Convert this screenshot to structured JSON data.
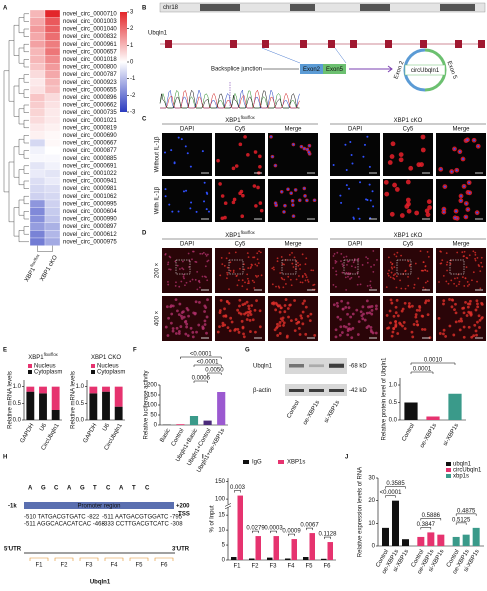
{
  "panel_labels": [
    "A",
    "B",
    "C",
    "D",
    "E",
    "F",
    "G",
    "H",
    "I",
    "J"
  ],
  "chart_data": [
    {
      "type": "heatmap",
      "rows": [
        "novel_circ_0000710",
        "novel_circ_0001003",
        "novel_circ_0001040",
        "novel_circ_0000832",
        "novel_circ_0000961",
        "novel_circ_0000657",
        "novel_circ_0001018",
        "novel_circ_0000800",
        "novel_circ_0000787",
        "novel_circ_0000923",
        "novel_circ_0000655",
        "novel_circ_0000896",
        "novel_circ_0000662",
        "novel_circ_0000735",
        "novel_circ_0001021",
        "novel_circ_0000819",
        "novel_circ_0000690",
        "novel_circ_0000667",
        "novel_circ_0000877",
        "novel_circ_0000885",
        "novel_circ_0000691",
        "novel_circ_0001022",
        "novel_circ_0000941",
        "novel_circ_0000981",
        "novel_circ_0001062",
        "novel_circ_0000995",
        "novel_circ_0000604",
        "novel_circ_0000990",
        "novel_circ_0000897",
        "novel_circ_0000612",
        "novel_circ_0000975"
      ],
      "columns": [
        {
          "label": "XBP1",
          "sup": "flox/flox"
        },
        {
          "label": "XBP1 cKO"
        }
      ],
      "values": [
        [
          1.0,
          3.0
        ],
        [
          1.2,
          2.3
        ],
        [
          1.4,
          2.2
        ],
        [
          1.2,
          2.0
        ],
        [
          1.3,
          1.8
        ],
        [
          1.0,
          1.9
        ],
        [
          1.0,
          1.6
        ],
        [
          0.8,
          1.4
        ],
        [
          0.5,
          1.2
        ],
        [
          0.3,
          1.0
        ],
        [
          0.4,
          0.9
        ],
        [
          0.8,
          0.5
        ],
        [
          0.7,
          0.4
        ],
        [
          0.6,
          0.3
        ],
        [
          0.5,
          0.3
        ],
        [
          0.3,
          0.2
        ],
        [
          0.2,
          0.1
        ],
        [
          -0.6,
          0.1
        ],
        [
          -0.2,
          0.0
        ],
        [
          -0.1,
          -0.1
        ],
        [
          -0.4,
          -0.2
        ],
        [
          -0.3,
          -0.4
        ],
        [
          -0.5,
          -0.3
        ],
        [
          -0.6,
          -0.5
        ],
        [
          -0.7,
          -0.6
        ],
        [
          -1.6,
          -0.7
        ],
        [
          -1.8,
          -0.8
        ],
        [
          -1.7,
          -0.9
        ],
        [
          -1.5,
          -1.2
        ],
        [
          -1.9,
          -1.1
        ],
        [
          -2.0,
          -1.3
        ]
      ],
      "zlim": [
        -3,
        3
      ],
      "colorbar_ticks": [
        3,
        2,
        1,
        0,
        -1,
        -2,
        -3
      ],
      "colors": [
        "#2b3bbf",
        "#ffffff",
        "#e3262a"
      ]
    },
    {
      "type": "stacked_bar",
      "title": {
        "label": "XBP1",
        "sup": "flox/flox"
      },
      "ylabel": "Relative mRNA levels",
      "categories": [
        "GAPDH",
        "U6",
        "CircUbqln1"
      ],
      "series": [
        {
          "name": "Nucleus",
          "color": "#e6336f",
          "values": [
            0.15,
            0.2,
            0.7
          ]
        },
        {
          "name": "Cytoplasm",
          "color": "#111111",
          "values": [
            0.85,
            0.8,
            0.3
          ]
        }
      ],
      "ylim": [
        0,
        1.2
      ],
      "yticks": [
        {
          "value": 0,
          "label": "0.0"
        },
        {
          "value": 0.5,
          "label": "0.5"
        },
        {
          "value": 1,
          "label": "1.0"
        }
      ]
    },
    {
      "type": "stacked_bar",
      "title": {
        "label": "XBP1 CKO"
      },
      "ylabel": "Relative mRNA levels",
      "categories": [
        "GAPDH",
        "U6",
        "CircUbqln1"
      ],
      "series": [
        {
          "name": "Nucleus",
          "color": "#e6336f",
          "values": [
            0.2,
            0.15,
            0.6
          ]
        },
        {
          "name": "Cytoplasm",
          "color": "#111111",
          "values": [
            0.8,
            0.85,
            0.4
          ]
        }
      ],
      "ylim": [
        0,
        1.2
      ],
      "yticks": [
        {
          "value": 0,
          "label": "0.0"
        },
        {
          "value": 0.5,
          "label": "0.5"
        },
        {
          "value": 1,
          "label": "1.0"
        }
      ]
    },
    {
      "type": "bar",
      "ylabel": "Relative luciferase activity",
      "categories": [
        "Basic",
        "Control",
        "Ubqln1+Basic",
        "Ubqln1+Control",
        "Ubqln1+oe-XBP1s"
      ],
      "values": [
        2,
        4,
        45,
        22,
        165
      ],
      "colors": [
        "#222222",
        "#e6336f",
        "#3a9a8a",
        "#4b2a7b",
        "#9b59d0"
      ],
      "ylim": [
        0,
        200
      ],
      "yticks": [
        0,
        50,
        100,
        150,
        200
      ],
      "annotations": [
        "0.0006",
        "0.0050",
        "<0.0001",
        "<0.0001"
      ]
    },
    {
      "type": "bar",
      "ylabel": "Relative protein level of Ubqln1",
      "categories": [
        "Control",
        "oe-XBP1s",
        "si-XBP1s"
      ],
      "values": [
        0.5,
        0.1,
        0.75
      ],
      "colors": [
        "#111111",
        "#e6336f",
        "#3a9a8a"
      ],
      "ylim": [
        0,
        1.2
      ],
      "yticks": [
        {
          "value": 0,
          "label": "0.0"
        },
        {
          "value": 0.5,
          "label": "0.5"
        },
        {
          "value": 1,
          "label": "1.0"
        }
      ],
      "annotations": [
        "0.0001",
        "0.0010"
      ]
    },
    {
      "type": "grouped_bar",
      "ylabel": "% of Input",
      "categories": [
        "F1",
        "F2",
        "F3",
        "F4",
        "F5",
        "F6"
      ],
      "series": [
        {
          "name": "IgG",
          "color": "#111111",
          "values": [
            1,
            0.5,
            0.8,
            0.5,
            1,
            0.4
          ]
        },
        {
          "name": "XBP1s",
          "color": "#e6336f",
          "values": [
            110,
            8,
            8,
            7,
            9,
            6
          ]
        }
      ],
      "ylim": [
        0,
        160
      ],
      "yticks": [
        0,
        5,
        10,
        15,
        100,
        150
      ],
      "axis_break": [
        17,
        90
      ],
      "annotations": [
        "0.003",
        "0.0279",
        "0.0003",
        "0.0009",
        "0.0067",
        "0.1128"
      ]
    },
    {
      "type": "clustered_bar",
      "ylabel": "Relative expression levels of RNA",
      "categories": [
        "Control",
        "oe-XBP1s",
        "si-XBP1s"
      ],
      "series": [
        {
          "name": "ubqln1",
          "color": "#111111",
          "values": [
            8,
            20,
            3
          ]
        },
        {
          "name": "circUbqln1",
          "color": "#e6336f",
          "values": [
            4,
            6,
            5
          ]
        },
        {
          "name": "xbp1s",
          "color": "#3a9a8a",
          "values": [
            4,
            5,
            8
          ]
        }
      ],
      "ylim": [
        0,
        30
      ],
      "yticks": [
        0,
        10,
        20,
        30
      ],
      "annotations": [
        "<0.0001",
        "0.3585",
        "0.3847",
        "0.5886",
        "0.5125",
        "0.4875"
      ]
    }
  ],
  "panel_b": {
    "chrom": "chr18",
    "gene": "Ubqln1",
    "junction_label": "Backsplice junction",
    "exons": [
      "Exon2",
      "Exon5"
    ],
    "circ": "circUbqln1",
    "circ_exons": [
      "Exon 2",
      "Exon 5"
    ]
  },
  "panel_c": {
    "groups": [
      {
        "label": "XBP1",
        "sup": "flox/flox"
      },
      {
        "label": "XBP1 cKO"
      }
    ],
    "channels": [
      "DAPI",
      "Cy5",
      "Merge"
    ],
    "rows": [
      "Without IL-1β",
      "With IL-1β"
    ]
  },
  "panel_d": {
    "groups": [
      {
        "label": "XBP1",
        "sup": "flox/flox"
      },
      {
        "label": "XBP1 cKO"
      }
    ],
    "channels": [
      "DAPI",
      "Cy5",
      "Merge"
    ],
    "rows": [
      "200 ×",
      "400 ×"
    ]
  },
  "panel_g_blot": {
    "bands": [
      "Ubqln1",
      "β-actin"
    ],
    "sizes": [
      "-68 kD",
      "-42 kD"
    ],
    "lanes": [
      "Control",
      "oe-XBP1s",
      "si-XBP1s"
    ]
  },
  "panel_h": {
    "logo": [
      "A",
      "G",
      "C",
      "A",
      "G",
      "T",
      "C",
      "A",
      "T",
      "C"
    ],
    "promoter": "Promoter region",
    "start": "-1k",
    "end": "+200",
    "tss": "TSS",
    "sites": [
      "-510 TATGACGTGATC -822",
      "-511 AATGACGTGGATC -795",
      "-511 AGGCACACATCAC -468",
      "-333 CCTTGACGTCATC -308"
    ],
    "utr5": "5'UTR",
    "utr3": "3'UTR",
    "gene": "Ubqln1",
    "fragments": [
      "F1",
      "F2",
      "F3",
      "F4",
      "F5",
      "F6"
    ]
  }
}
